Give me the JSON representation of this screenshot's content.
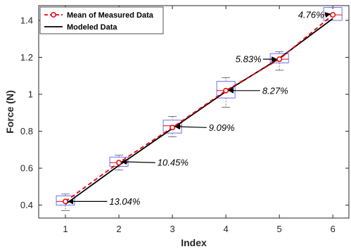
{
  "chart_data": {
    "type": "line",
    "xlabel": "Index",
    "ylabel": "Force (N)",
    "xlim": [
      0.5,
      6.3
    ],
    "ylim": [
      0.33,
      1.48
    ],
    "xticks": [
      1,
      2,
      3,
      4,
      5,
      6
    ],
    "yticks": [
      0.4,
      0.6,
      0.8,
      1.0,
      1.2,
      1.4
    ],
    "xtick_labels": [
      "1",
      "2",
      "3",
      "4",
      "5",
      "6"
    ],
    "ytick_labels": [
      "0.4",
      "0.6",
      "0.8",
      "1",
      "1.2",
      "1.4"
    ],
    "grid": false,
    "legend_position": "top-left",
    "x": [
      1,
      2,
      3,
      4,
      5,
      6
    ],
    "series": [
      {
        "name": "Mean of Measured Data",
        "values": [
          0.42,
          0.63,
          0.82,
          1.02,
          1.19,
          1.43
        ],
        "color": "#e8000b",
        "style": "dashed",
        "marker": "circle"
      },
      {
        "name": "Modeled Data",
        "values": [
          0.405,
          0.615,
          0.815,
          1.015,
          1.195,
          1.41
        ],
        "color": "#000000",
        "style": "solid"
      }
    ],
    "boxplots": [
      {
        "x": 1,
        "q1": 0.4,
        "q3": 0.45,
        "median": 0.42,
        "whisker_low": 0.37,
        "whisker_high": 0.46
      },
      {
        "x": 2,
        "q1": 0.61,
        "q3": 0.66,
        "median": 0.63,
        "whisker_low": 0.59,
        "whisker_high": 0.67
      },
      {
        "x": 3,
        "q1": 0.79,
        "q3": 0.86,
        "median": 0.83,
        "whisker_low": 0.77,
        "whisker_high": 0.88
      },
      {
        "x": 4,
        "q1": 0.98,
        "q3": 1.07,
        "median": 1.02,
        "whisker_low": 0.93,
        "whisker_high": 1.09
      },
      {
        "x": 5,
        "q1": 1.17,
        "q3": 1.22,
        "median": 1.19,
        "whisker_low": 1.13,
        "whisker_high": 1.23
      },
      {
        "x": 6,
        "q1": 1.4,
        "q3": 1.47,
        "median": 1.43,
        "whisker_low": 1.4,
        "whisker_high": 1.47
      }
    ],
    "box_color": "#6e6ef5",
    "median_color": "#e8000b",
    "annotations": [
      {
        "x": 1,
        "y": 0.42,
        "text": "13.04%",
        "text_x": 1.82,
        "text_y": 0.42
      },
      {
        "x": 2,
        "y": 0.635,
        "text": "10.45%",
        "text_x": 2.72,
        "text_y": 0.63
      },
      {
        "x": 3,
        "y": 0.825,
        "text": "9.09%",
        "text_x": 3.68,
        "text_y": 0.82
      },
      {
        "x": 4,
        "y": 1.02,
        "text": "8.27%",
        "text_x": 4.68,
        "text_y": 1.02
      },
      {
        "x": 5,
        "y": 1.19,
        "text": "5.83%",
        "text_x": 4.18,
        "text_y": 1.19
      },
      {
        "x": 6,
        "y": 1.435,
        "text": "4.76%",
        "text_x": 5.35,
        "text_y": 1.43
      }
    ]
  }
}
